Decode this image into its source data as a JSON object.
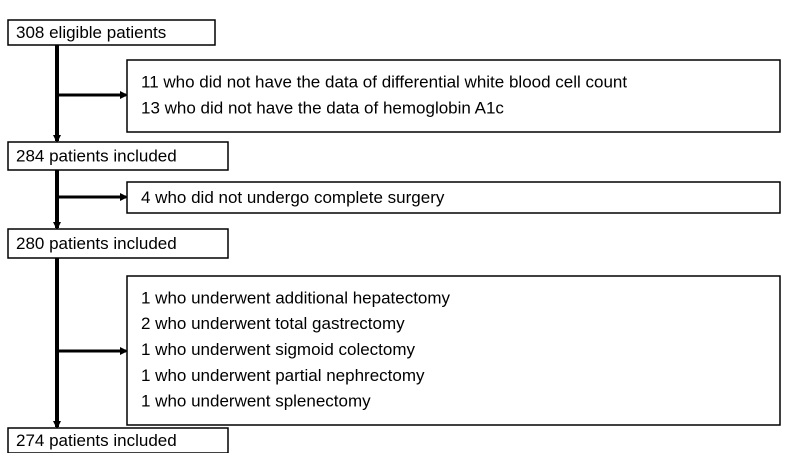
{
  "nodes": [
    {
      "label": "308 eligible patients"
    },
    {
      "label": "284 patients included"
    },
    {
      "label": "280 patients included"
    },
    {
      "label": "274 patients included"
    }
  ],
  "exclusions": [
    {
      "lines": [
        "11 who did not have the data of differential white blood cell count",
        "13 who did not have the data of hemoglobin A1c"
      ]
    },
    {
      "lines": [
        "4 who did not undergo complete surgery"
      ]
    },
    {
      "lines": [
        "1 who underwent additional hepatectomy",
        "2 who underwent total gastrectomy",
        "1 who underwent sigmoid colectomy",
        "1 who underwent partial nephrectomy",
        "1 who underwent splenectomy"
      ]
    }
  ]
}
